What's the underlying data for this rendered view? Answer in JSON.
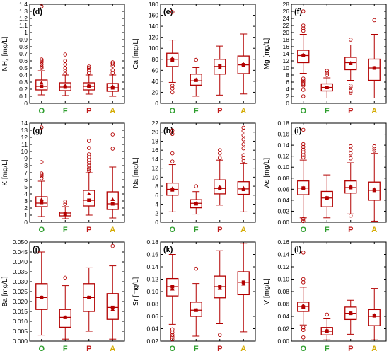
{
  "colors": {
    "box": "#b30000",
    "frame": "#000000",
    "O": "#2e9e2e",
    "F": "#2e9e2e",
    "P": "#c01818",
    "A": "#d4aa00"
  },
  "categories": [
    "O",
    "F",
    "P",
    "A"
  ],
  "chart_data": [
    {
      "type": "boxplot",
      "panel": "(d)",
      "ylabel": "NH4 [mg/L]",
      "ylabel_main": "NH",
      "ylabel_sub": "4",
      "ylabel_unit": " [mg/L]",
      "ylim": [
        0,
        1.4
      ],
      "yticks": [
        "0",
        "0.1",
        "0.2",
        "0.3",
        "0.4",
        "0.5",
        "0.6",
        "0.7",
        "0.8",
        "0.9",
        "1",
        "1.1",
        "1.2",
        "1.3",
        "1.4"
      ],
      "boxes": [
        {
          "min": 0.12,
          "q1": 0.19,
          "median": 0.24,
          "q3": 0.33,
          "max": 0.46,
          "mean": 0.24,
          "marker": 0.29,
          "outliers": [
            0.5,
            0.52,
            0.55,
            0.58,
            0.6,
            0.62,
            1.37
          ]
        },
        {
          "min": 0.11,
          "q1": 0.18,
          "median": 0.23,
          "q3": 0.29,
          "max": 0.4,
          "mean": 0.23,
          "marker": 0.25,
          "outliers": [
            0.42,
            0.46,
            0.5,
            0.55,
            0.6,
            0.69
          ]
        },
        {
          "min": 0.13,
          "q1": 0.19,
          "median": 0.24,
          "q3": 0.29,
          "max": 0.4,
          "mean": 0.24,
          "marker": 0.25,
          "outliers": [
            0.43,
            0.47,
            0.5,
            0.52
          ]
        },
        {
          "min": 0.1,
          "q1": 0.17,
          "median": 0.22,
          "q3": 0.28,
          "max": 0.4,
          "mean": 0.22,
          "marker": 0.24,
          "outliers": [
            0.43,
            0.47,
            0.53,
            0.56,
            0.58
          ]
        }
      ]
    },
    {
      "type": "boxplot",
      "panel": "(e)",
      "ylabel": "Ca [mg/L]",
      "ylim": [
        0,
        180
      ],
      "yticks": [
        "0",
        "20",
        "40",
        "60",
        "80",
        "100",
        "120",
        "140",
        "160",
        "180"
      ],
      "boxes": [
        {
          "min": 38,
          "q1": 67,
          "median": 80,
          "q3": 91,
          "max": 115,
          "mean": 79,
          "marker": 82,
          "outliers": [
            20,
            27,
            32,
            166
          ]
        },
        {
          "min": 13,
          "q1": 33,
          "median": 41,
          "q3": 53,
          "max": 65,
          "mean": 42,
          "marker": 43,
          "outliers": [
            79
          ]
        },
        {
          "min": 15,
          "q1": 53,
          "median": 67,
          "q3": 80,
          "max": 104,
          "mean": 68,
          "marker": 65,
          "outliers": []
        },
        {
          "min": 17,
          "q1": 54,
          "median": 70,
          "q3": 86,
          "max": 126,
          "mean": 70,
          "marker": 71,
          "outliers": []
        }
      ]
    },
    {
      "type": "boxplot",
      "panel": "(f)",
      "ylabel": "Mg [mg/L]",
      "ylim": [
        0,
        28
      ],
      "yticks": [
        "0",
        "2",
        "4",
        "6",
        "8",
        "10",
        "12",
        "14",
        "16",
        "18",
        "20",
        "22",
        "24",
        "26",
        "28"
      ],
      "boxes": [
        {
          "min": 8.5,
          "q1": 11.5,
          "median": 13.5,
          "q3": 15,
          "max": 19.5,
          "mean": 13.5,
          "marker": 13.8,
          "outliers": [
            2,
            3.8,
            5,
            5.5,
            6,
            6.5,
            7,
            20.5,
            21.2,
            22,
            26
          ]
        },
        {
          "min": 1.5,
          "q1": 3.5,
          "median": 4.5,
          "q3": 5.5,
          "max": 7.2,
          "mean": 4.5,
          "marker": 4.5,
          "outliers": [
            8,
            8.6,
            9.2
          ]
        },
        {
          "min": 6.5,
          "q1": 9.5,
          "median": 11.5,
          "q3": 13,
          "max": 16.5,
          "mean": 11.3,
          "marker": 11.4,
          "outliers": [
            3,
            3.5,
            4.5,
            5,
            18
          ]
        },
        {
          "min": 1.5,
          "q1": 6.5,
          "median": 10,
          "q3": 12.5,
          "max": 19.5,
          "mean": 10,
          "marker": 10,
          "outliers": [
            23.5
          ]
        }
      ]
    },
    {
      "type": "boxplot",
      "panel": "(g)",
      "ylabel": "K [mg/L]",
      "ylim": [
        0,
        14
      ],
      "yticks": [
        "0",
        "1",
        "2",
        "3",
        "4",
        "5",
        "6",
        "7",
        "8",
        "9",
        "10",
        "11",
        "12",
        "13",
        "14"
      ],
      "boxes": [
        {
          "min": 0.8,
          "q1": 2.2,
          "median": 2.7,
          "q3": 3.6,
          "max": 5.8,
          "mean": 2.8,
          "marker": 3.2,
          "outliers": [
            6.2,
            6.5,
            6.7,
            6.9,
            8.5,
            13.4
          ]
        },
        {
          "min": 0.5,
          "q1": 0.9,
          "median": 1.2,
          "q3": 1.4,
          "max": 2.2,
          "mean": 1.2,
          "marker": 1.1,
          "outliers": [
            2.6,
            2.9
          ]
        },
        {
          "min": 1,
          "q1": 2.3,
          "median": 3.1,
          "q3": 4.5,
          "max": 7,
          "mean": 3.1,
          "marker": 4,
          "outliers": [
            7.3,
            7.6,
            8,
            8.4,
            8.8,
            9.2,
            9.6,
            10.5,
            11.5
          ]
        },
        {
          "min": 0.6,
          "q1": 1.8,
          "median": 2.6,
          "q3": 4.3,
          "max": 7.8,
          "mean": 2.6,
          "marker": 3.2,
          "outliers": [
            10.4,
            12.4
          ]
        }
      ]
    },
    {
      "type": "boxplot",
      "panel": "(h)",
      "ylabel": "Na [mg/L]",
      "ylim": [
        0,
        22
      ],
      "yticks": [
        "0",
        "2",
        "4",
        "6",
        "8",
        "10",
        "12",
        "14",
        "16",
        "18",
        "20",
        "22"
      ],
      "boxes": [
        {
          "min": 2.3,
          "q1": 6,
          "median": 7.3,
          "q3": 8.7,
          "max": 12.8,
          "mean": 7.2,
          "marker": 7.5,
          "outliers": [
            13.5,
            15.3,
            19.6,
            20.4
          ]
        },
        {
          "min": 1.8,
          "q1": 3.2,
          "median": 4.2,
          "q3": 5,
          "max": 6.8,
          "mean": 4.1,
          "marker": 4.2,
          "outliers": [
            8
          ]
        },
        {
          "min": 3.8,
          "q1": 6.3,
          "median": 7.5,
          "q3": 9.4,
          "max": 13.8,
          "mean": 7.5,
          "marker": 7.8,
          "outliers": [
            14.3,
            15.3,
            16
          ]
        },
        {
          "min": 2.3,
          "q1": 6.2,
          "median": 7.4,
          "q3": 9,
          "max": 13,
          "mean": 7.3,
          "marker": 7.6,
          "outliers": [
            13.6,
            14.3,
            14.9,
            16.4,
            17.3,
            18.4,
            19.3,
            20.3,
            21
          ]
        }
      ]
    },
    {
      "type": "boxplot",
      "panel": "(i)",
      "ylabel": "As [mg/L]",
      "ylim": [
        0,
        0.18
      ],
      "yticks": [
        "0.00",
        "0.02",
        "0.04",
        "0.06",
        "0.08",
        "0.10",
        "0.12",
        "0.14",
        "0.16",
        "0.18"
      ],
      "boxes": [
        {
          "min": 0.008,
          "q1": 0.05,
          "median": 0.062,
          "q3": 0.075,
          "max": 0.113,
          "mean": 0.062,
          "marker": 0.063,
          "outliers": [
            0.002,
            0.006,
            0.118,
            0.122,
            0.127,
            0.132,
            0.137,
            0.142,
            0.168
          ]
        },
        {
          "min": 0.008,
          "q1": 0.028,
          "median": 0.044,
          "q3": 0.056,
          "max": 0.086,
          "mean": 0.044,
          "marker": 0.045,
          "outliers": []
        },
        {
          "min": 0.015,
          "q1": 0.053,
          "median": 0.063,
          "q3": 0.075,
          "max": 0.108,
          "mean": 0.063,
          "marker": 0.065,
          "outliers": [
            0.012,
            0.116,
            0.125,
            0.132,
            0.138
          ]
        },
        {
          "min": 0.002,
          "q1": 0.04,
          "median": 0.058,
          "q3": 0.073,
          "max": 0.125,
          "mean": 0.058,
          "marker": 0.06,
          "outliers": [
            0.13,
            0.134,
            0.138
          ]
        }
      ]
    },
    {
      "type": "boxplot",
      "panel": "(j)",
      "ylabel": "Ba [mg/L]",
      "ylim": [
        0,
        0.05
      ],
      "yticks": [
        "0.000",
        "0.005",
        "0.010",
        "0.015",
        "0.020",
        "0.025",
        "0.030",
        "0.035",
        "0.040",
        "0.045",
        "0.050"
      ],
      "boxes": [
        {
          "min": 0.003,
          "q1": 0.016,
          "median": 0.022,
          "q3": 0.029,
          "max": 0.045,
          "mean": 0.022,
          "marker": 0.022,
          "outliers": []
        },
        {
          "min": 0.001,
          "q1": 0.007,
          "median": 0.012,
          "q3": 0.016,
          "max": 0.028,
          "mean": 0.012,
          "marker": 0.012,
          "outliers": [
            0.032
          ]
        },
        {
          "min": 0.005,
          "q1": 0.015,
          "median": 0.022,
          "q3": 0.029,
          "max": 0.037,
          "mean": 0.022,
          "marker": 0.022,
          "outliers": []
        },
        {
          "min": 0.001,
          "q1": 0.011,
          "median": 0.017,
          "q3": 0.024,
          "max": 0.038,
          "mean": 0.017,
          "marker": 0.016,
          "outliers": [
            0.048
          ]
        }
      ]
    },
    {
      "type": "boxplot",
      "panel": "(k)",
      "ylabel": "Sr [mg/L]",
      "ylim": [
        0.02,
        0.18
      ],
      "yticks": [
        "0.02",
        "0.04",
        "0.06",
        "0.08",
        "0.10",
        "0.12",
        "0.14",
        "0.16",
        "0.18"
      ],
      "boxes": [
        {
          "min": 0.047,
          "q1": 0.093,
          "median": 0.108,
          "q3": 0.121,
          "max": 0.16,
          "mean": 0.108,
          "marker": 0.104,
          "outliers": [
            0.023,
            0.027,
            0.03,
            0.034,
            0.039
          ]
        },
        {
          "min": 0.028,
          "q1": 0.06,
          "median": 0.07,
          "q3": 0.083,
          "max": 0.113,
          "mean": 0.07,
          "marker": 0.07,
          "outliers": [
            0.137
          ]
        },
        {
          "min": 0.048,
          "q1": 0.09,
          "median": 0.108,
          "q3": 0.125,
          "max": 0.166,
          "mean": 0.108,
          "marker": 0.105,
          "outliers": [
            0.03
          ]
        },
        {
          "min": 0.035,
          "q1": 0.095,
          "median": 0.115,
          "q3": 0.132,
          "max": 0.178,
          "mean": 0.115,
          "marker": 0.112,
          "outliers": []
        }
      ]
    },
    {
      "type": "boxplot",
      "panel": "(l)",
      "ylabel": "V [mg/L]",
      "ylim": [
        0,
        0.16
      ],
      "yticks": [
        "0.00",
        "0.02",
        "0.04",
        "0.06",
        "0.08",
        "0.10",
        "0.12",
        "0.14",
        "0.16"
      ],
      "boxes": [
        {
          "min": 0.026,
          "q1": 0.048,
          "median": 0.056,
          "q3": 0.063,
          "max": 0.087,
          "mean": 0.055,
          "marker": 0.058,
          "outliers": [
            0.006,
            0.018,
            0.022,
            0.095,
            0.1,
            0.143
          ]
        },
        {
          "min": 0.002,
          "q1": 0.01,
          "median": 0.016,
          "q3": 0.022,
          "max": 0.036,
          "mean": 0.016,
          "marker": 0.018,
          "outliers": [
            0.043
          ]
        },
        {
          "min": 0.011,
          "q1": 0.035,
          "median": 0.045,
          "q3": 0.055,
          "max": 0.066,
          "mean": 0.045,
          "marker": 0.045,
          "outliers": []
        },
        {
          "min": 0.002,
          "q1": 0.025,
          "median": 0.04,
          "q3": 0.051,
          "max": 0.085,
          "mean": 0.041,
          "marker": 0.042,
          "outliers": []
        }
      ]
    }
  ]
}
